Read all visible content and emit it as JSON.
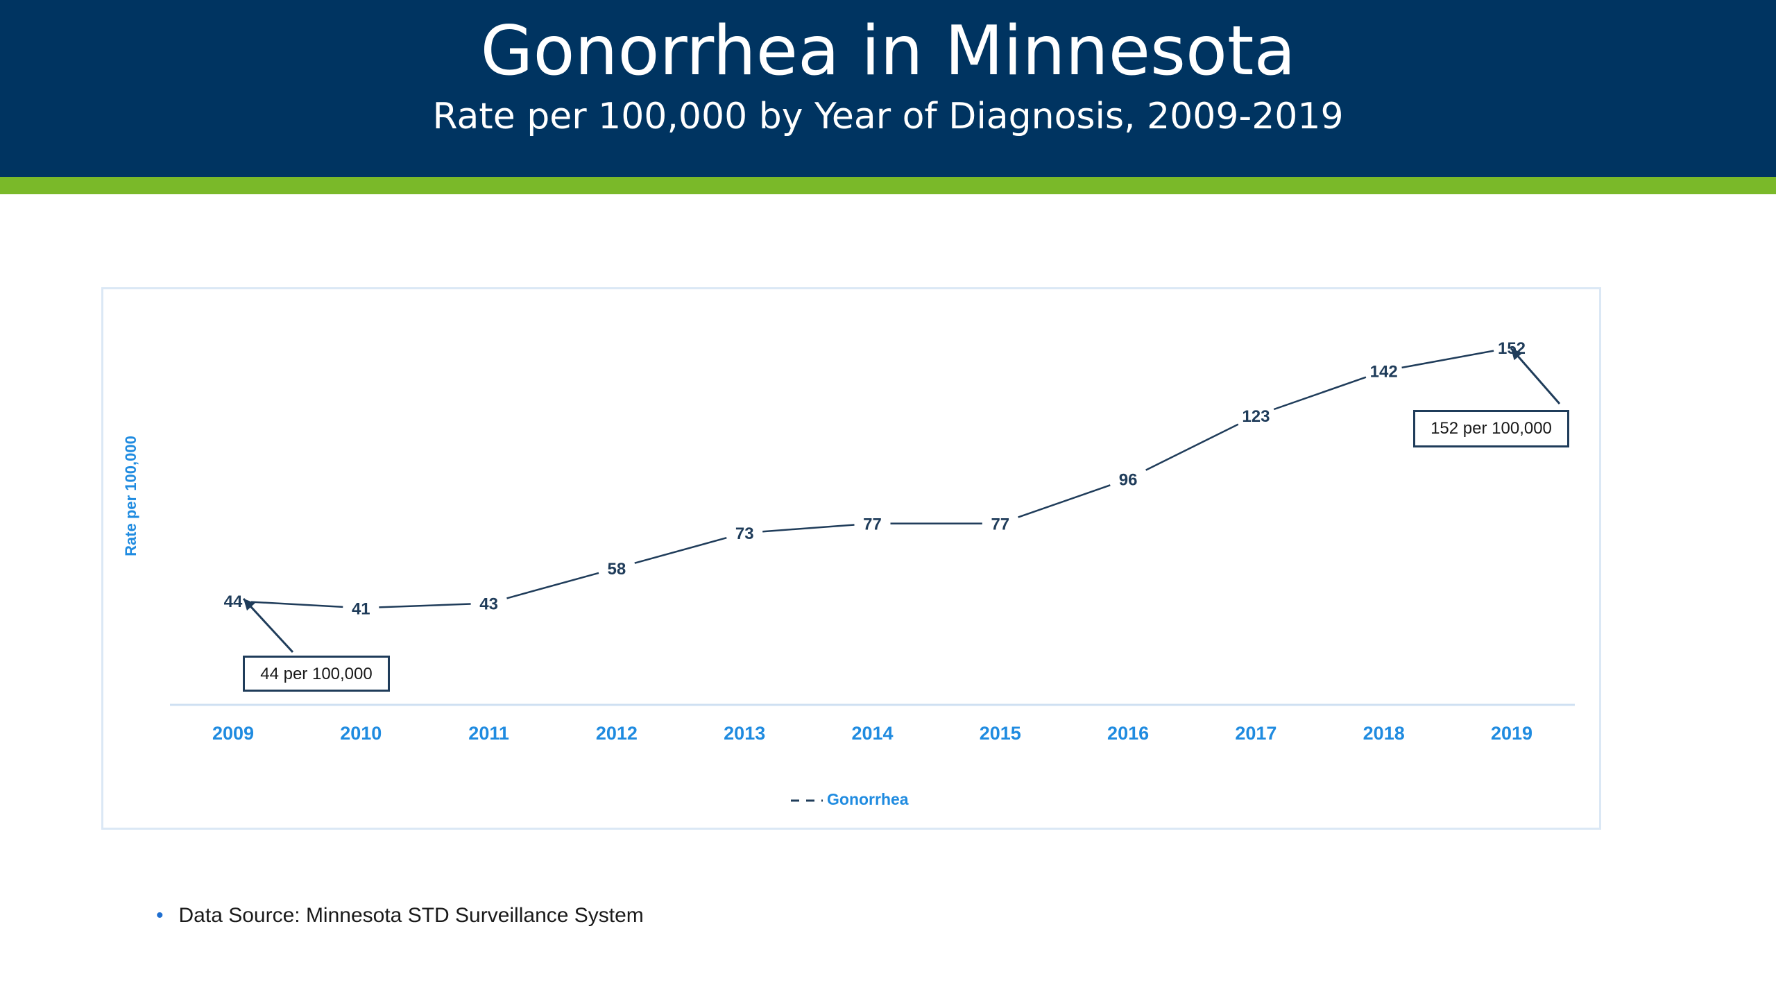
{
  "header": {
    "title": "Gonorrhea in Minnesota",
    "subtitle": "Rate per 100,000 by Year of Diagnosis, 2009-2019"
  },
  "colors": {
    "header_bg": "#003461",
    "accent_bar": "#7ab929",
    "axis_label": "#1f8be0",
    "series_line": "#1f3c5a"
  },
  "chart_data": {
    "type": "line",
    "title": "",
    "xlabel": "",
    "ylabel": "Rate per 100,000",
    "categories": [
      "2009",
      "2010",
      "2011",
      "2012",
      "2013",
      "2014",
      "2015",
      "2016",
      "2017",
      "2018",
      "2019"
    ],
    "series": [
      {
        "name": "Gonorrhea",
        "values": [
          44,
          41,
          43,
          58,
          73,
          77,
          77,
          96,
          123,
          142,
          152
        ]
      }
    ],
    "ylim": [
      0,
      170
    ],
    "grid": false,
    "legend": "bottom",
    "annotations": [
      {
        "text": "44 per 100,000",
        "category": "2009"
      },
      {
        "text": "152 per 100,000",
        "category": "2019"
      }
    ]
  },
  "footer": {
    "bullet": "•",
    "source": "Data Source: Minnesota STD Surveillance System"
  }
}
